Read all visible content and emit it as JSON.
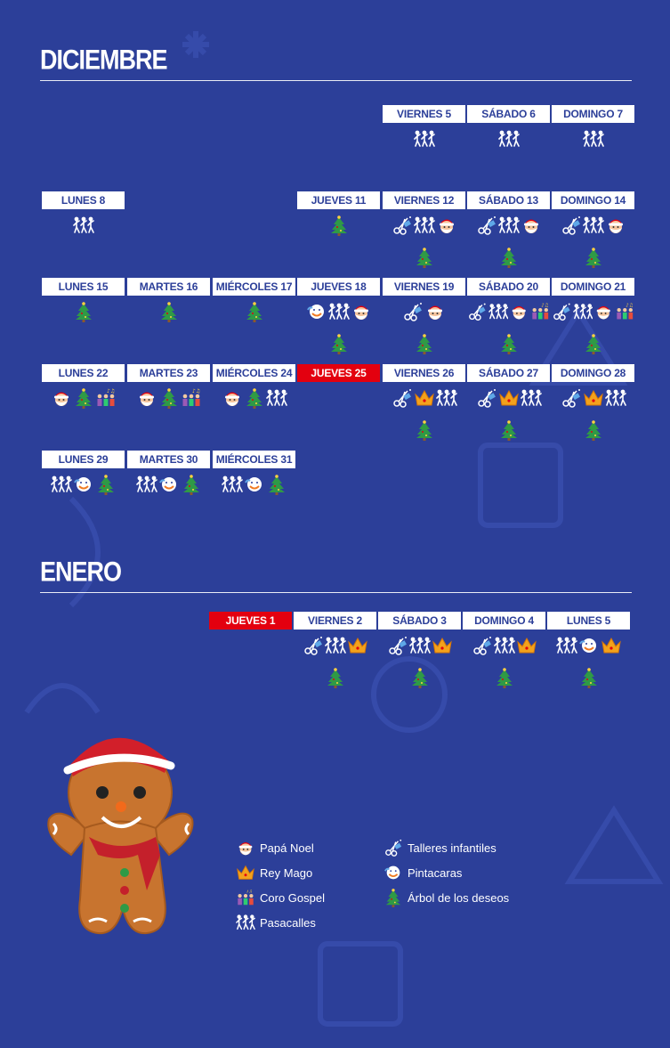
{
  "months": [
    {
      "title": "DICIEMBRE",
      "days": [
        "VIERNES 5",
        "SÁBADO 6",
        "DOMINGO 7",
        "LUNES 8",
        "JUEVES 11",
        "VIERNES 12",
        "SÁBADO 13",
        "DOMINGO 14",
        "LUNES 15",
        "MARTES 16",
        "MIÉRCOLES 17",
        "JUEVES 18",
        "VIERNES 19",
        "SÁBADO 20",
        "DOMINGO 21",
        "LUNES 22",
        "MARTES 23",
        "MIÉRCOLES 24",
        "JUEVES 25",
        "VIERNES 26",
        "SÁBADO 27",
        "DOMINGO 28",
        "LUNES 29",
        "MARTES 30",
        "MIÉRCOLES 31"
      ]
    },
    {
      "title": "ENERO",
      "days": [
        "JUEVES 1",
        "VIERNES 2",
        "SÁBADO 3",
        "DOMINGO 4",
        "LUNES 5"
      ]
    }
  ],
  "legend": [
    "Papá Noel",
    "Rey Mago",
    "Coro Gospel",
    "Pasacalles",
    "Talleres infantiles",
    "Pintacaras",
    "Árbol de los deseos"
  ]
}
